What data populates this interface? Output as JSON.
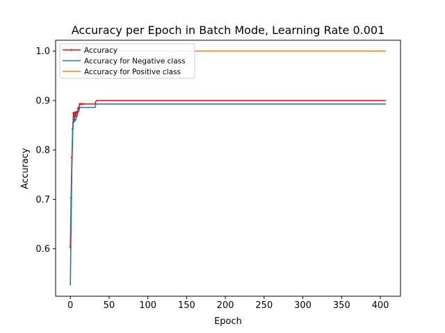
{
  "chart_data": {
    "type": "line",
    "title": "Accuracy per Epoch in Batch Mode, Learning Rate 0.001",
    "xlabel": "Epoch",
    "ylabel": "Accuracy",
    "xlim": [
      -19,
      426
    ],
    "ylim": [
      0.504,
      1.022
    ],
    "xticks": [
      0,
      50,
      100,
      150,
      200,
      250,
      300,
      350,
      400
    ],
    "yticks": [
      0.6,
      0.7,
      0.8,
      0.9,
      1.0
    ],
    "xtick_labels": [
      "0",
      "50",
      "100",
      "150",
      "200",
      "250",
      "300",
      "350",
      "400"
    ],
    "ytick_labels": [
      "0.6",
      "0.7",
      "0.8",
      "0.9",
      "1.0"
    ],
    "grid": false,
    "legend_position": "upper-left",
    "series": [
      {
        "name": "Accuracy",
        "color": "#e8141a",
        "marker": "point",
        "x": [
          0,
          1,
          2,
          3,
          4,
          5,
          6,
          7,
          8,
          9,
          10,
          11,
          12,
          13,
          14,
          16,
          18,
          20,
          22,
          25,
          28,
          31,
          32,
          33,
          34,
          35,
          40,
          60,
          100,
          200,
          300,
          407
        ],
        "y": [
          0.603,
          0.703,
          0.785,
          0.843,
          0.875,
          0.862,
          0.876,
          0.868,
          0.877,
          0.875,
          0.885,
          0.884,
          0.893,
          0.893,
          0.893,
          0.893,
          0.893,
          0.893,
          0.893,
          0.893,
          0.893,
          0.893,
          0.893,
          0.899,
          0.9,
          0.9,
          0.9,
          0.9,
          0.9,
          0.9,
          0.9,
          0.9
        ]
      },
      {
        "name": "Accuracy for Negative class",
        "color": "#1f77b4",
        "x": [
          0,
          1,
          2,
          3,
          4,
          5,
          6,
          7,
          8,
          9,
          10,
          11,
          12,
          13,
          14,
          20,
          25,
          32,
          33,
          34,
          35,
          100,
          200,
          300,
          407
        ],
        "y": [
          0.526,
          0.655,
          0.765,
          0.833,
          0.865,
          0.856,
          0.862,
          0.86,
          0.868,
          0.868,
          0.878,
          0.878,
          0.886,
          0.886,
          0.886,
          0.886,
          0.886,
          0.886,
          0.893,
          0.893,
          0.893,
          0.893,
          0.893,
          0.893,
          0.893
        ]
      },
      {
        "name": "Accuracy for Positive class",
        "color": "#ff7f0e",
        "x": [
          0,
          407
        ],
        "y": [
          1.0,
          1.0
        ]
      }
    ]
  }
}
